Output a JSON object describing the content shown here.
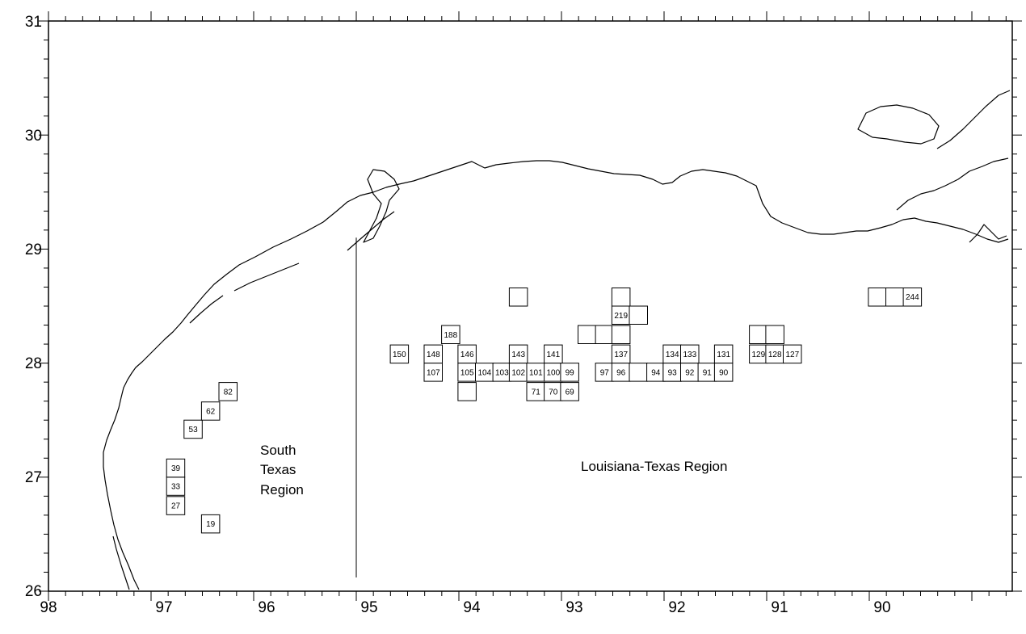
{
  "axes": {
    "x_labels": [
      "98",
      "97",
      "96",
      "95",
      "94",
      "93",
      "92",
      "91",
      "90"
    ],
    "y_labels": [
      "31",
      "30",
      "29",
      "28",
      "27",
      "26"
    ]
  },
  "regions": {
    "south_texas": [
      "South",
      "Texas",
      "Region"
    ],
    "louisiana_texas": "Louisiana-Texas Region"
  },
  "blocks": [
    {
      "label": "19",
      "lon": 96.42,
      "lat": 26.59
    },
    {
      "label": "27",
      "lon": 96.76,
      "lat": 26.75
    },
    {
      "label": "33",
      "lon": 96.76,
      "lat": 26.92
    },
    {
      "label": "39",
      "lon": 96.76,
      "lat": 27.08
    },
    {
      "label": "53",
      "lon": 96.59,
      "lat": 27.42
    },
    {
      "label": "62",
      "lon": 96.42,
      "lat": 27.58
    },
    {
      "label": "82",
      "lon": 96.25,
      "lat": 27.75
    },
    {
      "label": "150",
      "lon": 94.58,
      "lat": 28.08
    },
    {
      "label": "148",
      "lon": 94.25,
      "lat": 28.08
    },
    {
      "label": "107",
      "lon": 94.25,
      "lat": 27.92
    },
    {
      "label": "188",
      "lon": 94.08,
      "lat": 28.25
    },
    {
      "label": "146",
      "lon": 93.92,
      "lat": 28.08
    },
    {
      "label": "105",
      "lon": 93.92,
      "lat": 27.92
    },
    {
      "label": "",
      "lon": 93.92,
      "lat": 27.75
    },
    {
      "label": "104",
      "lon": 93.75,
      "lat": 27.92
    },
    {
      "label": "103",
      "lon": 93.58,
      "lat": 27.92
    },
    {
      "label": "",
      "lon": 93.42,
      "lat": 28.58
    },
    {
      "label": "143",
      "lon": 93.42,
      "lat": 28.08
    },
    {
      "label": "102",
      "lon": 93.42,
      "lat": 27.92
    },
    {
      "label": "101",
      "lon": 93.25,
      "lat": 27.92
    },
    {
      "label": "71",
      "lon": 93.25,
      "lat": 27.75
    },
    {
      "label": "141",
      "lon": 93.08,
      "lat": 28.08
    },
    {
      "label": "100",
      "lon": 93.08,
      "lat": 27.92
    },
    {
      "label": "70",
      "lon": 93.08,
      "lat": 27.75
    },
    {
      "label": "99",
      "lon": 92.92,
      "lat": 27.92
    },
    {
      "label": "69",
      "lon": 92.92,
      "lat": 27.75
    },
    {
      "label": "",
      "lon": 92.75,
      "lat": 28.25
    },
    {
      "label": "",
      "lon": 92.58,
      "lat": 28.25
    },
    {
      "label": "97",
      "lon": 92.58,
      "lat": 27.92
    },
    {
      "label": "",
      "lon": 92.42,
      "lat": 28.58
    },
    {
      "label": "219",
      "lon": 92.42,
      "lat": 28.42
    },
    {
      "label": "",
      "lon": 92.42,
      "lat": 28.25
    },
    {
      "label": "137",
      "lon": 92.42,
      "lat": 28.08
    },
    {
      "label": "96",
      "lon": 92.42,
      "lat": 27.92
    },
    {
      "label": "",
      "lon": 92.25,
      "lat": 28.42
    },
    {
      "label": "",
      "lon": 92.25,
      "lat": 27.92
    },
    {
      "label": "94",
      "lon": 92.08,
      "lat": 27.92
    },
    {
      "label": "",
      "lon": 91.92,
      "lat": 27.92
    },
    {
      "label": "134",
      "lon": 91.92,
      "lat": 28.08
    },
    {
      "label": "93",
      "lon": 91.92,
      "lat": 27.92
    },
    {
      "label": "133",
      "lon": 91.75,
      "lat": 28.08
    },
    {
      "label": "92",
      "lon": 91.75,
      "lat": 27.92
    },
    {
      "label": "91",
      "lon": 91.58,
      "lat": 27.92
    },
    {
      "label": "131",
      "lon": 91.42,
      "lat": 28.08
    },
    {
      "label": "90",
      "lon": 91.42,
      "lat": 27.92
    },
    {
      "label": "",
      "lon": 91.08,
      "lat": 28.25
    },
    {
      "label": "129",
      "lon": 91.08,
      "lat": 28.08
    },
    {
      "label": "",
      "lon": 90.92,
      "lat": 28.25
    },
    {
      "label": "128",
      "lon": 90.92,
      "lat": 28.08
    },
    {
      "label": "127",
      "lon": 90.75,
      "lat": 28.08
    },
    {
      "label": "",
      "lon": 89.92,
      "lat": 28.58
    },
    {
      "label": "",
      "lon": 89.75,
      "lat": 28.58
    },
    {
      "label": "244",
      "lon": 89.58,
      "lat": 28.58
    }
  ],
  "divider": {
    "lon": 95.0,
    "lat_top": 29.1,
    "lat_bottom": 26.12
  },
  "colors": {
    "ink": "#000000",
    "background": "#ffffff"
  }
}
